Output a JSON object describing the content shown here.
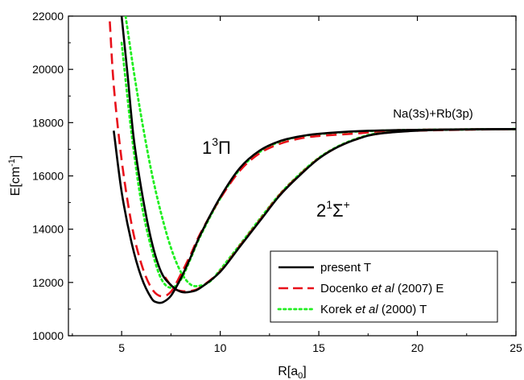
{
  "chart_data": {
    "type": "line",
    "xlabel": {
      "main": "R[a",
      "sub": "0",
      "tail": "]"
    },
    "ylabel": {
      "main": "E[cm",
      "sup": "-1",
      "tail": "]"
    },
    "xlim": [
      2.3,
      25
    ],
    "ylim": [
      10000,
      22000
    ],
    "xticks": [
      5,
      10,
      15,
      20,
      25
    ],
    "yticks": [
      10000,
      12000,
      14000,
      16000,
      18000,
      20000,
      22000
    ],
    "grid": false,
    "legend_position": "bottom-right",
    "annotations": {
      "asymptote": "Na(3s)+Rb(3p)",
      "state_pi": {
        "base": "1",
        "sup": "3",
        "symbol": "Π"
      },
      "state_sigma": {
        "base": "2",
        "sup": "1",
        "symbol": "Σ",
        "sup2": "+"
      }
    },
    "legend": [
      {
        "style": "solid",
        "color": "#000000",
        "parts": [
          {
            "t": "present T",
            "i": false
          }
        ]
      },
      {
        "style": "dashed",
        "color": "#e8101a",
        "parts": [
          {
            "t": "Docenko ",
            "i": false
          },
          {
            "t": "et al",
            "i": true
          },
          {
            "t": " (2007) E",
            "i": false
          }
        ]
      },
      {
        "style": "dotted",
        "color": "#22ee22",
        "parts": [
          {
            "t": "Korek ",
            "i": false
          },
          {
            "t": "et al",
            "i": true
          },
          {
            "t": " (2000) T",
            "i": false
          }
        ]
      }
    ],
    "series": [
      {
        "name": "present T",
        "state": "1³Π",
        "style": "solid",
        "color": "#000000",
        "points": [
          [
            4.6,
            17700
          ],
          [
            5.0,
            15400
          ],
          [
            5.5,
            13500
          ],
          [
            6.0,
            12200
          ],
          [
            6.5,
            11420
          ],
          [
            6.8,
            11250
          ],
          [
            7.1,
            11260
          ],
          [
            7.5,
            11500
          ],
          [
            8.0,
            12150
          ],
          [
            8.5,
            12950
          ],
          [
            9.0,
            13800
          ],
          [
            10.0,
            15200
          ],
          [
            11.0,
            16300
          ],
          [
            12.0,
            16950
          ],
          [
            13.0,
            17300
          ],
          [
            14.0,
            17480
          ],
          [
            15.0,
            17580
          ],
          [
            17.0,
            17680
          ],
          [
            20.0,
            17730
          ],
          [
            25.0,
            17760
          ]
        ]
      },
      {
        "name": "present T",
        "state": "2¹Σ⁺",
        "style": "solid",
        "color": "#000000",
        "points": [
          [
            5.0,
            22000
          ],
          [
            5.3,
            19800
          ],
          [
            5.6,
            17500
          ],
          [
            6.0,
            15500
          ],
          [
            6.5,
            13600
          ],
          [
            7.0,
            12400
          ],
          [
            7.5,
            11900
          ],
          [
            8.0,
            11650
          ],
          [
            8.5,
            11650
          ],
          [
            9.0,
            11800
          ],
          [
            10.0,
            12400
          ],
          [
            11.0,
            13350
          ],
          [
            12.0,
            14300
          ],
          [
            13.0,
            15250
          ],
          [
            14.0,
            16000
          ],
          [
            15.0,
            16650
          ],
          [
            16.0,
            17100
          ],
          [
            17.0,
            17400
          ],
          [
            18.0,
            17580
          ],
          [
            20.0,
            17700
          ],
          [
            22.0,
            17740
          ],
          [
            25.0,
            17760
          ]
        ]
      },
      {
        "name": "Docenko et al (2007) E",
        "state": "1³Π",
        "style": "dashed",
        "color": "#e8101a",
        "points": [
          [
            4.4,
            21800
          ],
          [
            4.6,
            19400
          ],
          [
            5.0,
            16600
          ],
          [
            5.5,
            14200
          ],
          [
            6.0,
            12700
          ],
          [
            6.5,
            11800
          ],
          [
            7.0,
            11480
          ],
          [
            7.5,
            11650
          ],
          [
            8.0,
            12300
          ],
          [
            8.5,
            13050
          ],
          [
            9.0,
            13850
          ],
          [
            10.0,
            15150
          ],
          [
            11.0,
            16200
          ],
          [
            12.0,
            16850
          ],
          [
            13.0,
            17200
          ],
          [
            14.0,
            17400
          ],
          [
            15.0,
            17500
          ],
          [
            17.0,
            17600
          ],
          [
            18.5,
            17700
          ],
          [
            20.0,
            17730
          ],
          [
            25.0,
            17760
          ]
        ]
      },
      {
        "name": "Docenko et al (2007) E",
        "state": "2¹Σ⁺",
        "style": "dashed",
        "color": "#e8101a",
        "points": [
          [
            7.2,
            12200
          ],
          [
            7.6,
            11800
          ],
          [
            8.0,
            11680
          ],
          [
            8.5,
            11680
          ],
          [
            9.0,
            11820
          ],
          [
            10.0,
            12420
          ],
          [
            11.0,
            13380
          ],
          [
            12.0,
            14330
          ],
          [
            13.0,
            15280
          ],
          [
            14.0,
            16020
          ],
          [
            15.0,
            16660
          ],
          [
            16.0,
            17100
          ],
          [
            17.0,
            17400
          ],
          [
            18.0,
            17580
          ],
          [
            20.0,
            17700
          ],
          [
            25.0,
            17760
          ]
        ]
      },
      {
        "name": "Korek et al (2000) T",
        "state": "1³Π",
        "style": "dotted",
        "color": "#22ee22",
        "points": [
          [
            5.0,
            21000
          ],
          [
            5.5,
            17600
          ],
          [
            6.0,
            15000
          ],
          [
            6.5,
            13300
          ],
          [
            7.0,
            12150
          ],
          [
            7.5,
            11800
          ],
          [
            8.0,
            12100
          ],
          [
            8.5,
            12900
          ],
          [
            9.0,
            13750
          ],
          [
            10.0,
            15150
          ],
          [
            11.0,
            16250
          ],
          [
            12.0,
            16900
          ],
          [
            13.0,
            17280
          ],
          [
            14.0,
            17470
          ],
          [
            15.0,
            17570
          ],
          [
            17.0,
            17670
          ],
          [
            20.0,
            17730
          ],
          [
            25.0,
            17760
          ]
        ]
      },
      {
        "name": "Korek et al (2000) T",
        "state": "2¹Σ⁺",
        "style": "dotted",
        "color": "#22ee22",
        "points": [
          [
            5.2,
            22000
          ],
          [
            5.6,
            20000
          ],
          [
            6.0,
            18200
          ],
          [
            6.5,
            16200
          ],
          [
            7.0,
            14600
          ],
          [
            7.5,
            13300
          ],
          [
            8.0,
            12400
          ],
          [
            8.5,
            11920
          ],
          [
            9.0,
            11880
          ],
          [
            9.5,
            12050
          ],
          [
            10.0,
            12480
          ],
          [
            11.0,
            13420
          ],
          [
            12.0,
            14380
          ],
          [
            13.0,
            15300
          ],
          [
            14.0,
            16050
          ],
          [
            15.0,
            16680
          ],
          [
            16.0,
            17120
          ],
          [
            17.0,
            17420
          ],
          [
            18.0,
            17600
          ],
          [
            20.0,
            17710
          ],
          [
            25.0,
            17760
          ]
        ]
      }
    ]
  }
}
